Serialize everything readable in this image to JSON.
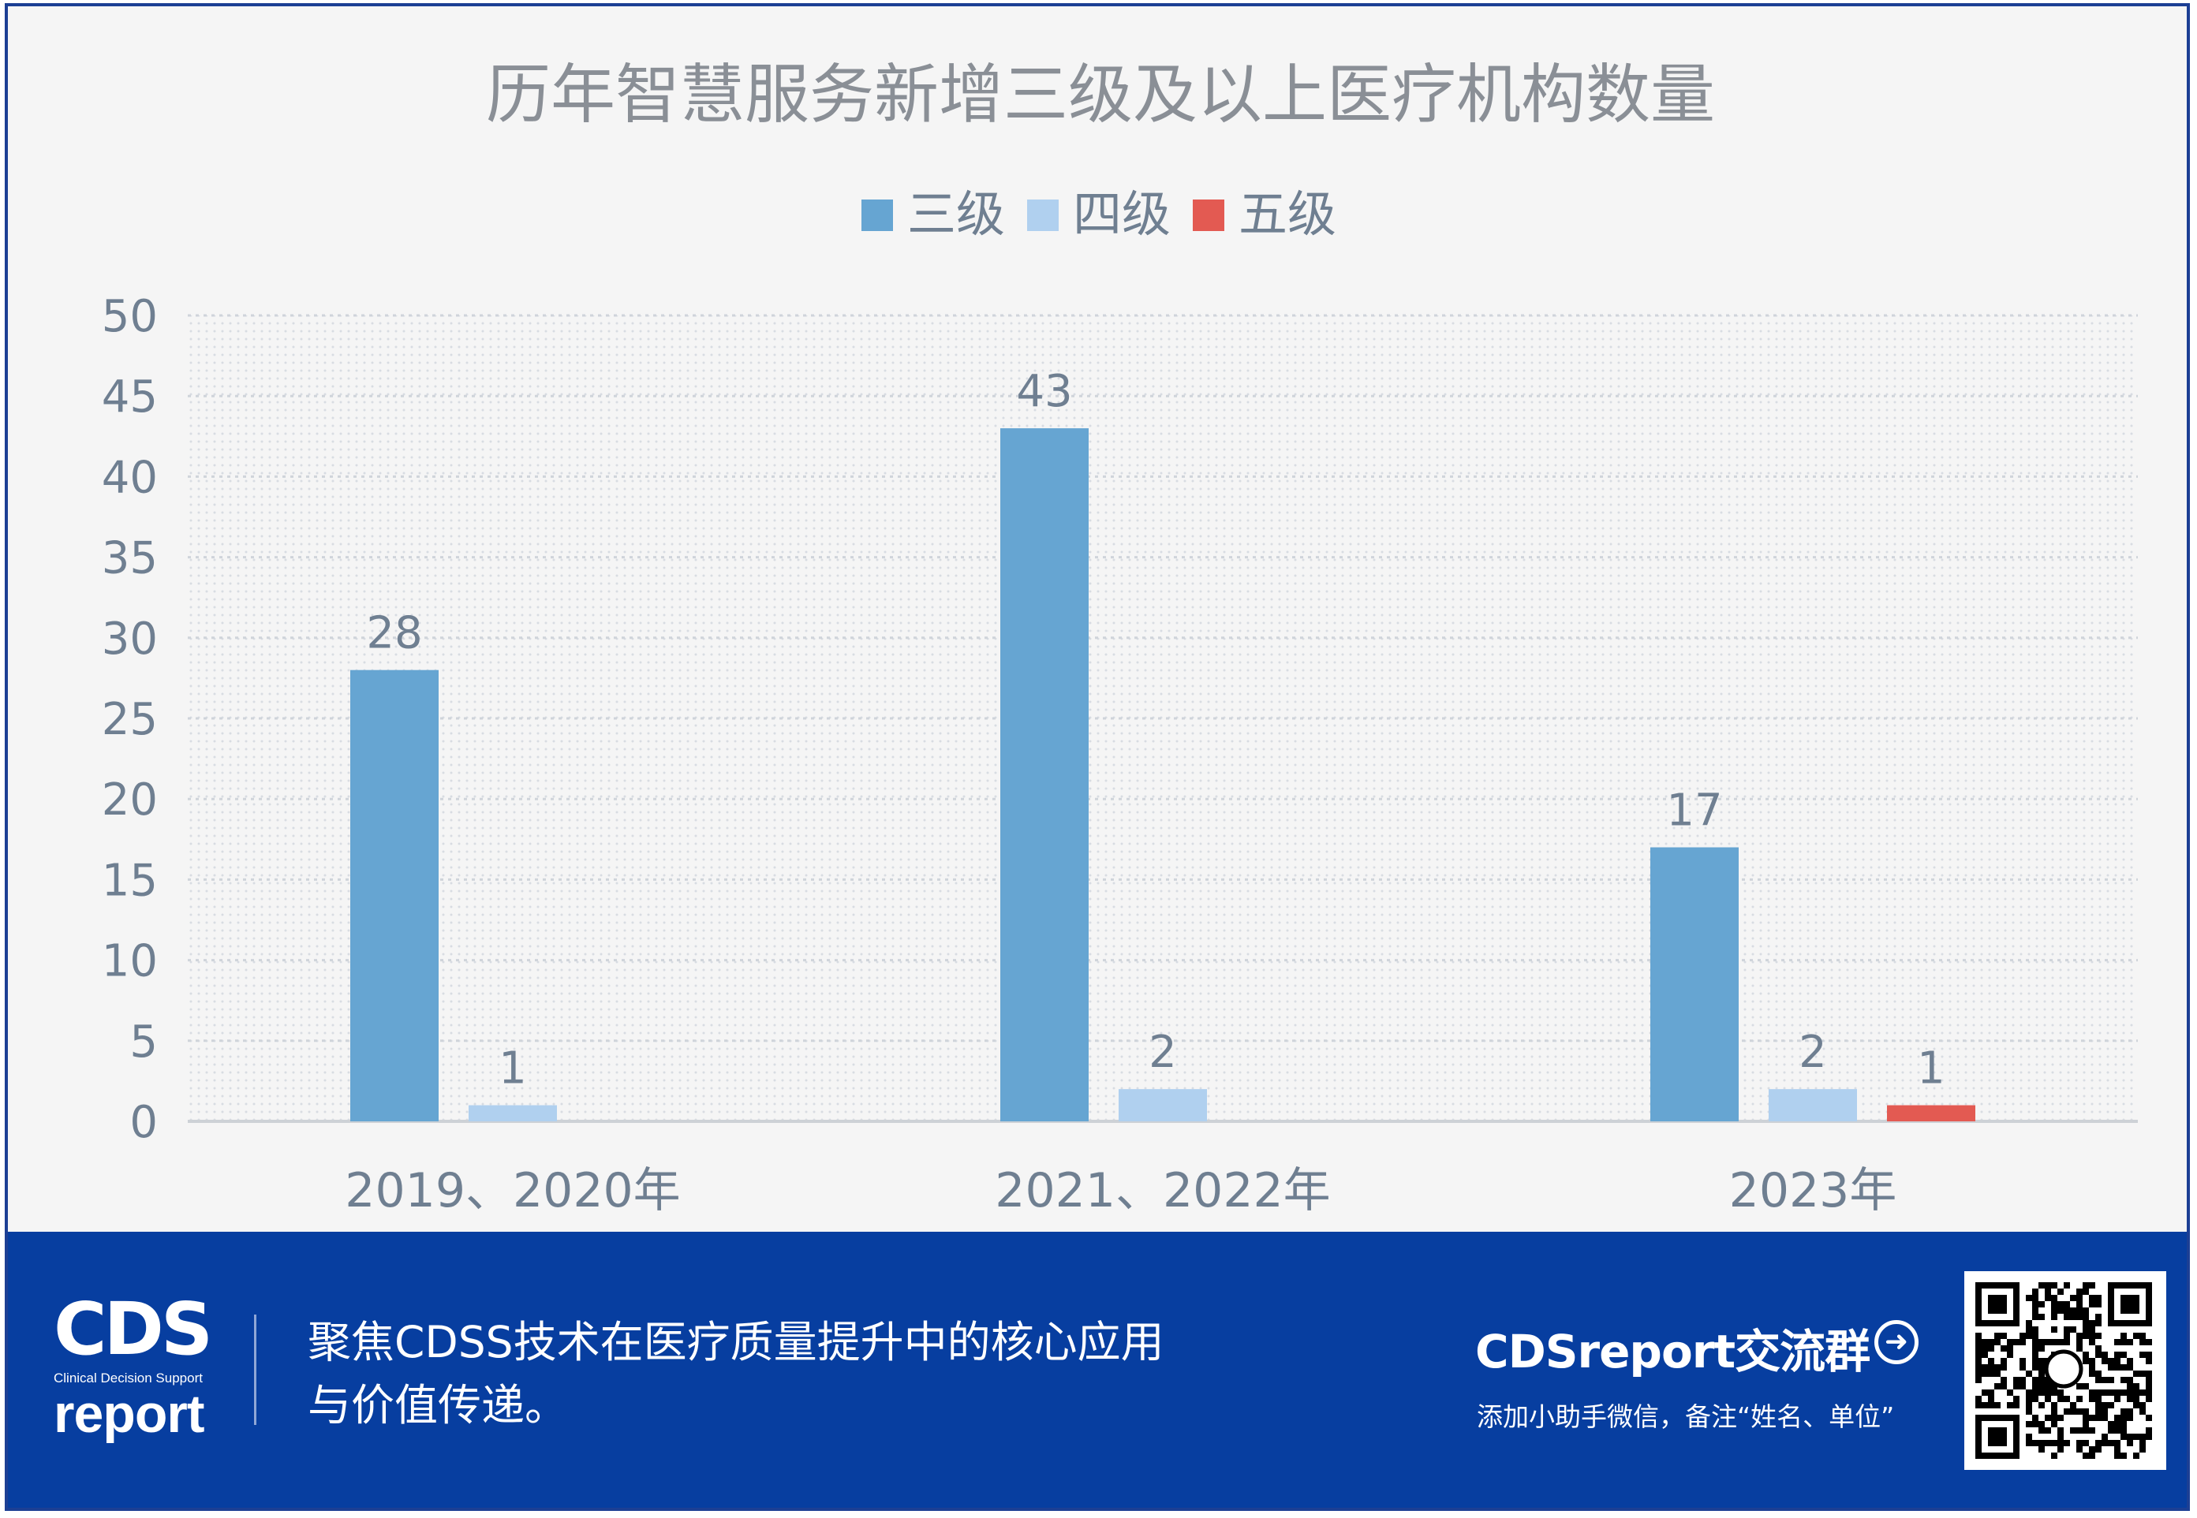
{
  "chart_data": {
    "type": "bar",
    "title": "历年智慧服务新增三级及以上医疗机构数量",
    "categories": [
      "2019、2020年",
      "2021、2022年",
      "2023年"
    ],
    "series": [
      {
        "name": "三级",
        "color": "#66a5d2",
        "values": [
          28,
          43,
          17
        ]
      },
      {
        "name": "四级",
        "color": "#b0d0ef",
        "values": [
          1,
          2,
          2
        ]
      },
      {
        "name": "五级",
        "color": "#e35a52",
        "values": [
          null,
          null,
          1
        ]
      }
    ],
    "ylim": [
      0,
      50
    ],
    "yticks": [
      0,
      5,
      10,
      15,
      20,
      25,
      30,
      35,
      40,
      45,
      50
    ],
    "xlabel": "",
    "ylabel": "",
    "grid": true,
    "legend": "top-center"
  },
  "footer": {
    "logo_top": "CDS",
    "logo_caption": "Clinical Decision Support",
    "logo_bottom": "report",
    "slogan_line1": "聚焦CDSS技术在医疗质量提升中的核心应用",
    "slogan_line2": "与价值传递。",
    "group_title": "CDSreport交流群",
    "group_subtitle": "添加小助手微信，备注“姓名、单位”",
    "background_color": "#073ea0"
  }
}
